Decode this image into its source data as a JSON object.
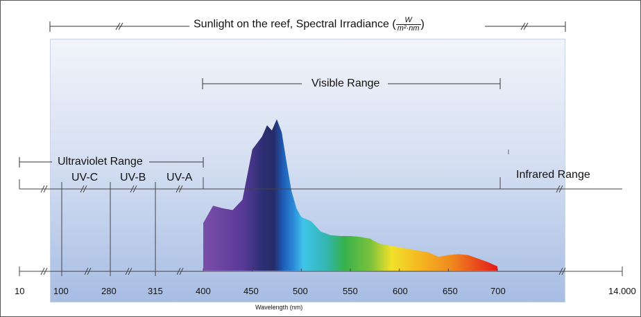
{
  "title": {
    "text": "Sunlight on the reef, Spectral Irradiance (",
    "numerator": "W",
    "denominator": "m²·nm",
    "close": ")"
  },
  "ranges": {
    "visible": "Visible Range",
    "ultraviolet": "Ultraviolet Range",
    "infrared": "Infrared Range"
  },
  "bands": [
    "UV-C",
    "UV-B",
    "UV-A"
  ],
  "axis": {
    "label": "Wavelength (nm)",
    "ticks": [
      "10",
      "100",
      "280",
      "315",
      "400",
      "450",
      "500",
      "550",
      "600",
      "650",
      "700",
      "14.000"
    ]
  },
  "colors": {
    "sky_top": "#f1f4fb",
    "sky_bottom": "#a8bde4",
    "violet": "#6a3fa0",
    "indigo": "#2b2f6e",
    "blue": "#1f6fc4",
    "cyan": "#3ec4ea",
    "green": "#35b24a",
    "yellow": "#f2e12a",
    "orange": "#f39a1f",
    "red": "#e32222"
  },
  "chart_data": {
    "type": "area",
    "x": [
      400,
      410,
      420,
      430,
      440,
      450,
      460,
      465,
      470,
      475,
      480,
      485,
      490,
      495,
      500,
      510,
      520,
      530,
      540,
      550,
      560,
      570,
      580,
      590,
      600,
      610,
      620,
      630,
      640,
      650,
      660,
      670,
      680,
      690,
      700
    ],
    "y": [
      0.55,
      0.75,
      0.72,
      0.7,
      0.82,
      1.4,
      1.55,
      1.68,
      1.62,
      1.75,
      1.6,
      1.25,
      0.92,
      0.72,
      0.62,
      0.57,
      0.45,
      0.41,
      0.4,
      0.4,
      0.39,
      0.37,
      0.31,
      0.29,
      0.27,
      0.25,
      0.23,
      0.21,
      0.16,
      0.18,
      0.19,
      0.18,
      0.14,
      0.1,
      0.05
    ],
    "xlabel": "Wavelength (nm)",
    "ylabel": ""
  }
}
